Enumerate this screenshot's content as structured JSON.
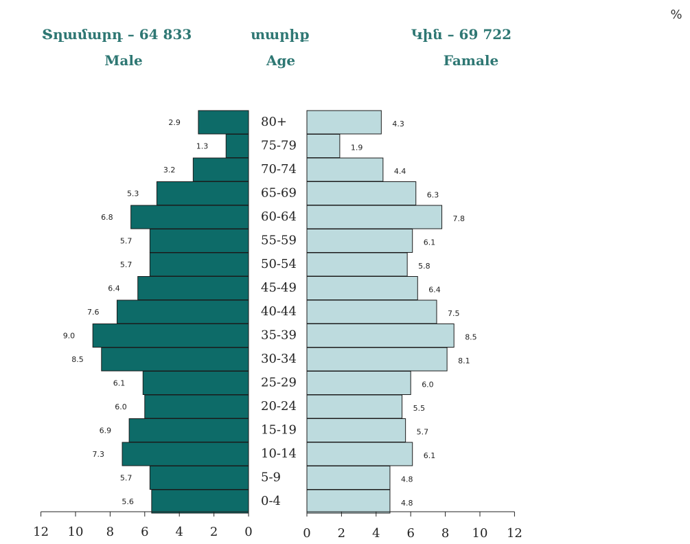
{
  "header": {
    "male_title": "Տղամարդ – 64 833",
    "male_subtitle": "Male",
    "age_title": "տարիք",
    "age_subtitle": "Age",
    "female_title": "Կին – 69 722",
    "female_subtitle": "Famale",
    "unit": "%"
  },
  "colors": {
    "male": "#0d6b68",
    "female": "#bddbde",
    "outline": "#1a1a1a",
    "header": "#2e7773"
  },
  "chart_data": {
    "type": "bar",
    "orientation": "horizontal-population-pyramid",
    "categories": [
      "80+",
      "75-79",
      "70-74",
      "65-69",
      "60-64",
      "55-59",
      "50-54",
      "45-49",
      "40-44",
      "35-39",
      "30-34",
      "25-29",
      "20-24",
      "15-19",
      "10-14",
      "5-9",
      "0-4"
    ],
    "series": [
      {
        "name": "Male",
        "values": [
          2.9,
          1.3,
          3.2,
          5.3,
          6.8,
          5.7,
          5.7,
          6.4,
          7.6,
          9.0,
          8.5,
          6.1,
          6.0,
          6.9,
          7.3,
          5.7,
          5.6
        ],
        "labels": [
          "2.9",
          "1.3",
          "3.2",
          "5.3",
          "6.8",
          "5.7",
          "5.7",
          "6.4",
          "7.6",
          "9.0",
          "8.5",
          "6.1",
          "6.0",
          "6.9",
          "7.3",
          "5.7",
          "5.6"
        ]
      },
      {
        "name": "Famale",
        "values": [
          4.3,
          1.9,
          4.4,
          6.3,
          7.8,
          6.1,
          5.8,
          6.4,
          7.5,
          8.5,
          8.1,
          6.0,
          5.5,
          5.7,
          6.1,
          4.8,
          4.8
        ],
        "labels": [
          "4.3",
          "1.9",
          "4.4",
          "6.3",
          "7.8",
          "6.1",
          "5.8",
          "6.4",
          "7.5",
          "8.5",
          "8.1",
          "6.0",
          "5.5",
          "5.7",
          "6.1",
          "4.8",
          "4.8"
        ]
      }
    ],
    "male_axis_ticks": [
      "12",
      "10",
      "8",
      "6",
      "4",
      "2",
      "0"
    ],
    "female_axis_ticks": [
      "0",
      "2",
      "4",
      "6",
      "8",
      "10",
      "12"
    ],
    "xlim": [
      0,
      12
    ],
    "grid": false
  }
}
